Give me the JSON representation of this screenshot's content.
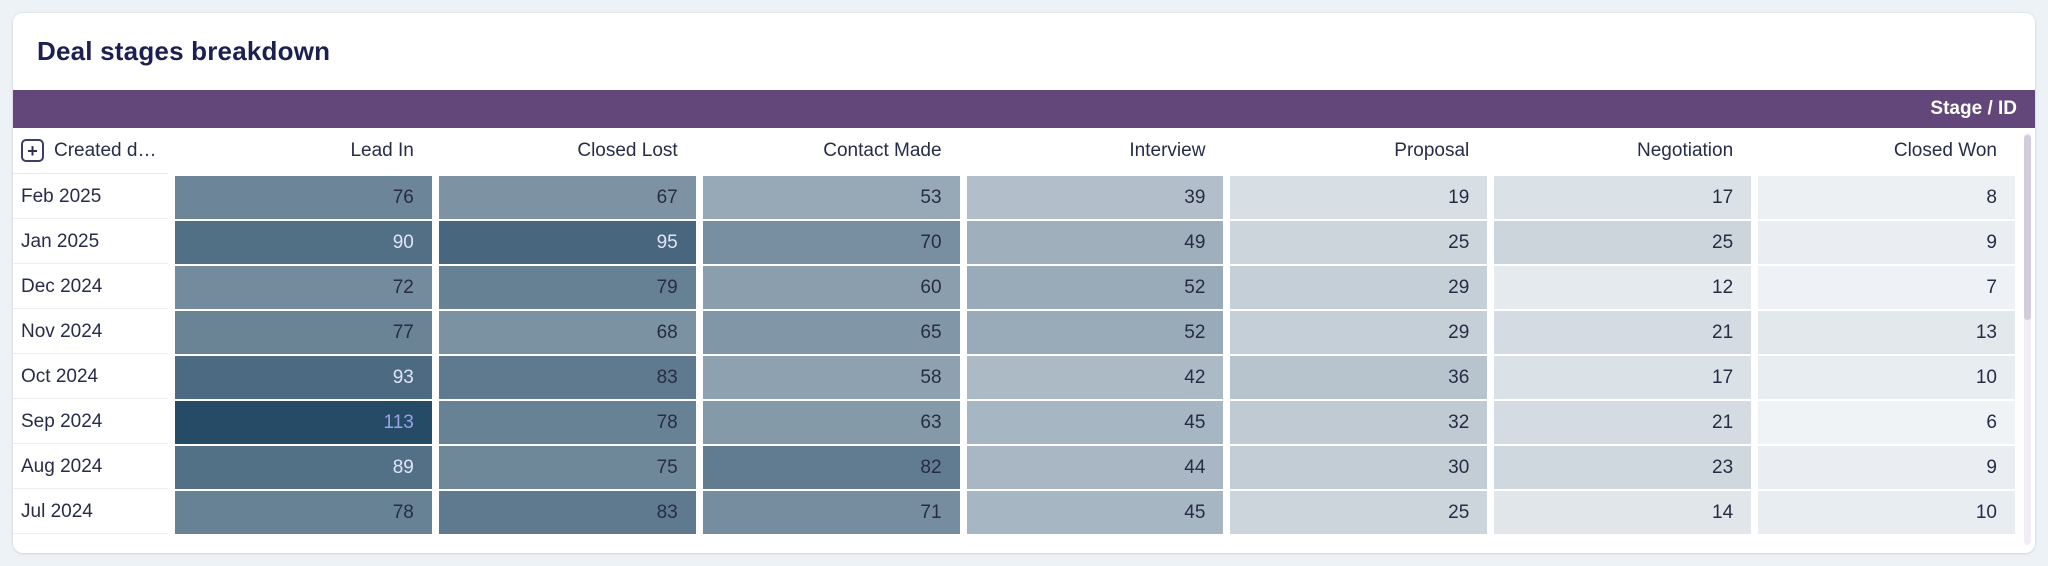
{
  "widget": {
    "title": "Deal stages breakdown",
    "group_label": "Stage / ID"
  },
  "table": {
    "row_header": "Created dat…",
    "expand_icon": "plus-icon"
  },
  "heatmap_style": {
    "min_color": "#f0f3f6",
    "max_color": "#264b66",
    "dark_text": "#272c44",
    "light_text": "#e2e4f6",
    "link_text": "#98a2e6",
    "bar_color": "#63467a"
  },
  "chart_data": {
    "type": "heatmap",
    "title": "Deal stages breakdown",
    "group_label": "Stage / ID",
    "row_dimension": "Created date (month)",
    "x_categories": [
      "Lead In",
      "Closed Lost",
      "Contact Made",
      "Interview",
      "Proposal",
      "Negotiation",
      "Closed Won"
    ],
    "y_categories": [
      "Feb 2025",
      "Jan 2025",
      "Dec 2024",
      "Nov 2024",
      "Oct 2024",
      "Sep 2024",
      "Aug 2024",
      "Jul 2024"
    ],
    "values": [
      [
        76,
        67,
        53,
        39,
        19,
        17,
        8
      ],
      [
        90,
        95,
        70,
        49,
        25,
        25,
        9
      ],
      [
        72,
        79,
        60,
        52,
        29,
        12,
        7
      ],
      [
        77,
        68,
        65,
        52,
        29,
        21,
        13
      ],
      [
        93,
        83,
        58,
        42,
        36,
        17,
        10
      ],
      [
        113,
        78,
        63,
        45,
        32,
        21,
        6
      ],
      [
        89,
        75,
        82,
        44,
        30,
        23,
        9
      ],
      [
        78,
        83,
        71,
        45,
        25,
        14,
        10
      ]
    ],
    "value_range": [
      6,
      113
    ],
    "color_scale": {
      "min": "#f0f3f6",
      "max": "#264b66"
    },
    "legend": "none",
    "grid": "white 7px column gaps, 2px row gaps"
  }
}
